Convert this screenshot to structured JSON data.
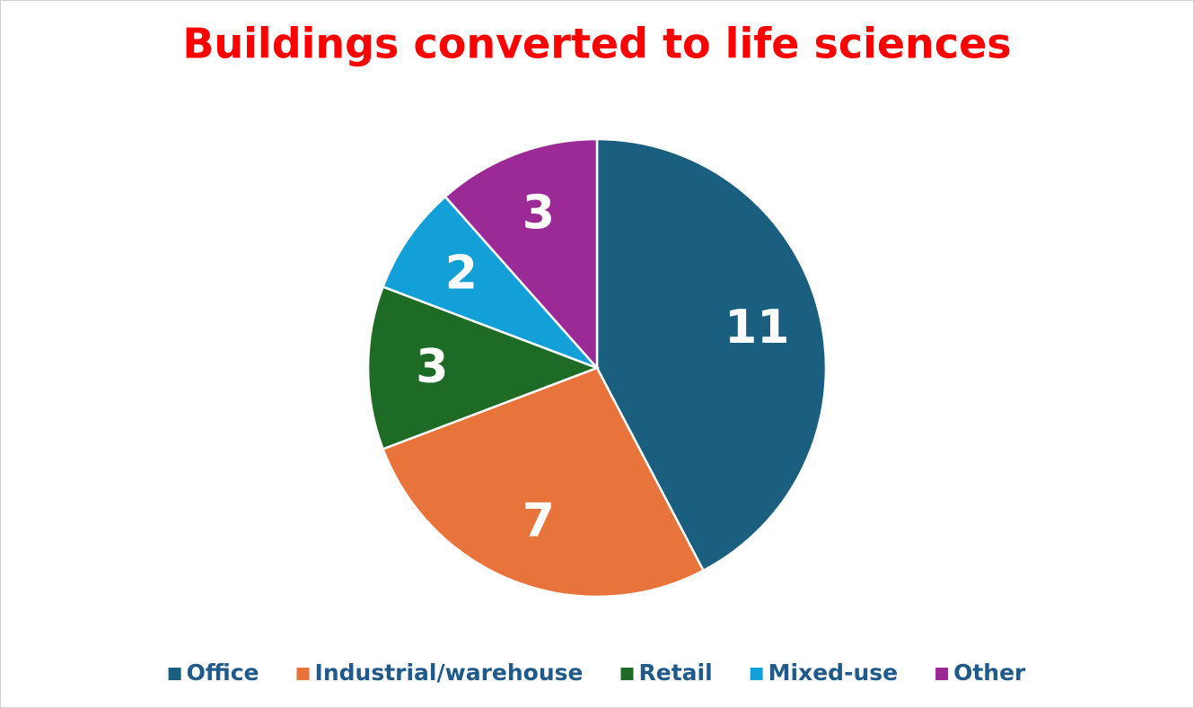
{
  "chart_data": {
    "type": "pie",
    "title": "Buildings converted to life sciences",
    "categories": [
      "Office",
      "Industrial/warehouse",
      "Retail",
      "Mixed-use",
      "Other"
    ],
    "values": [
      11,
      7,
      3,
      2,
      3
    ],
    "colors": [
      "#1a5e80",
      "#e8743b",
      "#1e6b25",
      "#139fd8",
      "#9b2a96"
    ],
    "legend": "bottom"
  }
}
